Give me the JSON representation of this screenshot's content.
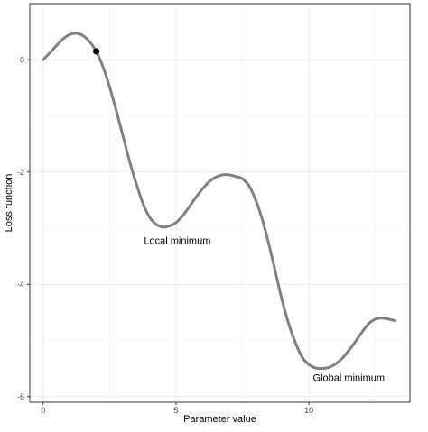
{
  "chart_data": {
    "type": "line",
    "title": "",
    "xlabel": "Parameter value",
    "ylabel": "Loss function",
    "xlim": [
      -0.5,
      13.8
    ],
    "ylim": [
      -6.1,
      1.0
    ],
    "x_ticks": [
      0,
      5,
      10
    ],
    "x_tick_labels": [
      "0",
      "5",
      "10"
    ],
    "y_ticks": [
      0,
      -2,
      -4,
      -6
    ],
    "y_tick_labels": [
      "0",
      "-2",
      "-4",
      "-6"
    ],
    "grid": true,
    "legend": "none",
    "line_color": "#808080",
    "point_color": "#000000",
    "series": [
      {
        "x": [
          0,
          0.25,
          0.5,
          0.75,
          1.0,
          1.25,
          1.5,
          1.75,
          2.0,
          2.25,
          2.5,
          2.75,
          3.0,
          3.25,
          3.5,
          3.75,
          4.0,
          4.25,
          4.5,
          4.75,
          5.0,
          5.25,
          5.5,
          5.75,
          6.0,
          6.25,
          6.5,
          6.75,
          7.0,
          7.25,
          7.5,
          7.75,
          8.0,
          8.25,
          8.5,
          8.75,
          9.0,
          9.25,
          9.5,
          9.75,
          10.0,
          10.25,
          10.5,
          10.75,
          11.0,
          11.25,
          11.5,
          11.75,
          12.0,
          12.25,
          12.5,
          12.75,
          13.0,
          13.25
        ],
        "y": [
          0.0,
          0.12,
          0.25,
          0.37,
          0.45,
          0.47,
          0.43,
          0.32,
          0.15,
          -0.12,
          -0.48,
          -0.9,
          -1.35,
          -1.8,
          -2.2,
          -2.55,
          -2.8,
          -2.93,
          -2.98,
          -2.96,
          -2.9,
          -2.78,
          -2.62,
          -2.45,
          -2.3,
          -2.17,
          -2.09,
          -2.05,
          -2.05,
          -2.08,
          -2.12,
          -2.25,
          -2.5,
          -2.85,
          -3.3,
          -3.8,
          -4.3,
          -4.72,
          -5.05,
          -5.3,
          -5.43,
          -5.49,
          -5.5,
          -5.48,
          -5.42,
          -5.32,
          -5.18,
          -5.02,
          -4.85,
          -4.7,
          -4.62,
          -4.6,
          -4.62,
          -4.65
        ]
      }
    ],
    "point": {
      "x": 2.0,
      "y": 0.15
    },
    "annotations": [
      {
        "text": "Local minimum",
        "x": 5.05,
        "y": -3.22
      },
      {
        "text": "Global minimum",
        "x": 11.5,
        "y": -5.66
      }
    ]
  }
}
